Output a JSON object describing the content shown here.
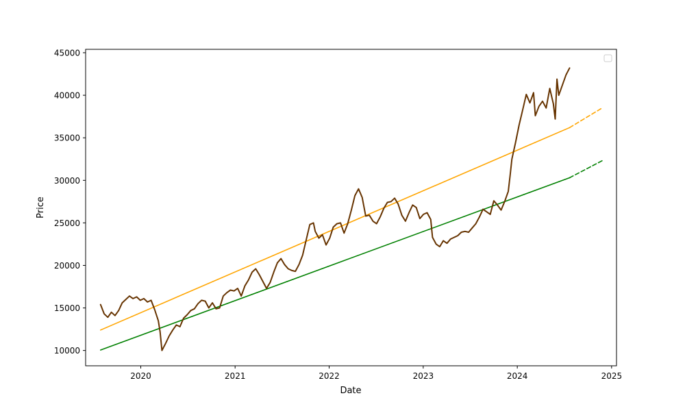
{
  "chart_data": {
    "type": "line",
    "title": "",
    "xlabel": "Date",
    "ylabel": "Price",
    "x_ticks": [
      "2020",
      "2021",
      "2022",
      "2023",
      "2024",
      "2025"
    ],
    "y_ticks": [
      "10000",
      "15000",
      "20000",
      "25000",
      "30000",
      "35000",
      "40000",
      "45000"
    ],
    "xlim": [
      "2019-06-01",
      "2025-01-20"
    ],
    "ylim": [
      8200,
      45400
    ],
    "grid": false,
    "legend": {
      "placement": "top-right",
      "entries": []
    },
    "colors": {
      "price": "#663300",
      "orange_line": "#ffa500",
      "green_line": "#008000"
    },
    "series": [
      {
        "key": "price",
        "style": "solid",
        "points": [
          [
            "2019-07-29",
            15400
          ],
          [
            "2019-08-12",
            14300
          ],
          [
            "2019-08-26",
            13900
          ],
          [
            "2019-09-09",
            14500
          ],
          [
            "2019-09-23",
            14100
          ],
          [
            "2019-10-07",
            14700
          ],
          [
            "2019-10-21",
            15600
          ],
          [
            "2019-11-04",
            16000
          ],
          [
            "2019-11-18",
            16400
          ],
          [
            "2019-12-02",
            16100
          ],
          [
            "2019-12-16",
            16300
          ],
          [
            "2019-12-30",
            15900
          ],
          [
            "2020-01-13",
            16100
          ],
          [
            "2020-01-27",
            15700
          ],
          [
            "2020-02-10",
            15900
          ],
          [
            "2020-02-24",
            14800
          ],
          [
            "2020-03-09",
            13500
          ],
          [
            "2020-03-16",
            12200
          ],
          [
            "2020-03-23",
            10000
          ],
          [
            "2020-04-06",
            10800
          ],
          [
            "2020-04-20",
            11700
          ],
          [
            "2020-05-04",
            12400
          ],
          [
            "2020-05-18",
            13000
          ],
          [
            "2020-06-01",
            12800
          ],
          [
            "2020-06-15",
            13800
          ],
          [
            "2020-06-29",
            14200
          ],
          [
            "2020-07-13",
            14700
          ],
          [
            "2020-07-27",
            14900
          ],
          [
            "2020-08-10",
            15500
          ],
          [
            "2020-08-24",
            15900
          ],
          [
            "2020-09-07",
            15800
          ],
          [
            "2020-09-21",
            15000
          ],
          [
            "2020-10-05",
            15600
          ],
          [
            "2020-10-19",
            14900
          ],
          [
            "2020-11-02",
            15000
          ],
          [
            "2020-11-16",
            16400
          ],
          [
            "2020-11-30",
            16800
          ],
          [
            "2020-12-14",
            17100
          ],
          [
            "2020-12-28",
            17000
          ],
          [
            "2021-01-11",
            17300
          ],
          [
            "2021-01-25",
            16400
          ],
          [
            "2021-02-08",
            17600
          ],
          [
            "2021-02-22",
            18300
          ],
          [
            "2021-03-08",
            19200
          ],
          [
            "2021-03-22",
            19600
          ],
          [
            "2021-04-05",
            18900
          ],
          [
            "2021-04-19",
            18100
          ],
          [
            "2021-05-03",
            17300
          ],
          [
            "2021-05-17",
            18000
          ],
          [
            "2021-05-31",
            19200
          ],
          [
            "2021-06-14",
            20300
          ],
          [
            "2021-06-28",
            20800
          ],
          [
            "2021-07-12",
            20100
          ],
          [
            "2021-07-26",
            19600
          ],
          [
            "2021-08-09",
            19400
          ],
          [
            "2021-08-23",
            19300
          ],
          [
            "2021-09-06",
            20100
          ],
          [
            "2021-09-20",
            21200
          ],
          [
            "2021-10-04",
            23000
          ],
          [
            "2021-10-18",
            24800
          ],
          [
            "2021-11-01",
            25000
          ],
          [
            "2021-11-08",
            24000
          ],
          [
            "2021-11-22",
            23200
          ],
          [
            "2021-12-06",
            23600
          ],
          [
            "2021-12-20",
            22400
          ],
          [
            "2022-01-03",
            23200
          ],
          [
            "2022-01-17",
            24500
          ],
          [
            "2022-01-31",
            24900
          ],
          [
            "2022-02-14",
            25000
          ],
          [
            "2022-02-28",
            23800
          ],
          [
            "2022-03-14",
            24900
          ],
          [
            "2022-03-28",
            26500
          ],
          [
            "2022-04-11",
            28200
          ],
          [
            "2022-04-25",
            29000
          ],
          [
            "2022-05-09",
            28000
          ],
          [
            "2022-05-23",
            25800
          ],
          [
            "2022-06-06",
            25900
          ],
          [
            "2022-06-20",
            25200
          ],
          [
            "2022-07-04",
            24900
          ],
          [
            "2022-07-18",
            25700
          ],
          [
            "2022-08-01",
            26700
          ],
          [
            "2022-08-15",
            27400
          ],
          [
            "2022-08-29",
            27500
          ],
          [
            "2022-09-12",
            27900
          ],
          [
            "2022-09-26",
            27200
          ],
          [
            "2022-10-10",
            25900
          ],
          [
            "2022-10-24",
            25200
          ],
          [
            "2022-11-07",
            26200
          ],
          [
            "2022-11-21",
            27100
          ],
          [
            "2022-12-05",
            26800
          ],
          [
            "2022-12-19",
            25500
          ],
          [
            "2023-01-02",
            26000
          ],
          [
            "2023-01-16",
            26200
          ],
          [
            "2023-01-30",
            25400
          ],
          [
            "2023-02-06",
            23300
          ],
          [
            "2023-02-20",
            22500
          ],
          [
            "2023-03-06",
            22200
          ],
          [
            "2023-03-20",
            22900
          ],
          [
            "2023-04-03",
            22600
          ],
          [
            "2023-04-17",
            23100
          ],
          [
            "2023-05-01",
            23300
          ],
          [
            "2023-05-15",
            23500
          ],
          [
            "2023-05-29",
            23900
          ],
          [
            "2023-06-12",
            24000
          ],
          [
            "2023-06-26",
            23900
          ],
          [
            "2023-07-10",
            24400
          ],
          [
            "2023-07-24",
            24900
          ],
          [
            "2023-08-07",
            25700
          ],
          [
            "2023-08-21",
            26600
          ],
          [
            "2023-09-04",
            26300
          ],
          [
            "2023-09-18",
            26000
          ],
          [
            "2023-10-02",
            27600
          ],
          [
            "2023-10-16",
            27100
          ],
          [
            "2023-10-30",
            26500
          ],
          [
            "2023-11-13",
            27500
          ],
          [
            "2023-11-27",
            28700
          ],
          [
            "2023-12-04",
            30500
          ],
          [
            "2023-12-11",
            32500
          ],
          [
            "2023-12-25",
            34400
          ],
          [
            "2024-01-08",
            36500
          ],
          [
            "2024-01-22",
            38300
          ],
          [
            "2024-02-05",
            40100
          ],
          [
            "2024-02-19",
            39100
          ],
          [
            "2024-03-04",
            40300
          ],
          [
            "2024-03-11",
            37600
          ],
          [
            "2024-03-25",
            38700
          ],
          [
            "2024-04-08",
            39300
          ],
          [
            "2024-04-22",
            38500
          ],
          [
            "2024-05-06",
            40800
          ],
          [
            "2024-05-20",
            39000
          ],
          [
            "2024-05-27",
            37200
          ],
          [
            "2024-06-03",
            41900
          ],
          [
            "2024-06-10",
            40000
          ],
          [
            "2024-06-24",
            41200
          ],
          [
            "2024-07-08",
            42400
          ],
          [
            "2024-07-22",
            43200
          ]
        ]
      },
      {
        "key": "orange_line",
        "style": "solid",
        "points": [
          [
            "2019-07-29",
            12400
          ],
          [
            "2024-07-22",
            36200
          ]
        ]
      },
      {
        "key": "orange_line",
        "style": "dashed",
        "points": [
          [
            "2024-07-22",
            36200
          ],
          [
            "2024-11-25",
            38500
          ]
        ]
      },
      {
        "key": "green_line",
        "style": "solid",
        "points": [
          [
            "2019-07-29",
            10050
          ],
          [
            "2024-07-22",
            30300
          ]
        ]
      },
      {
        "key": "green_line",
        "style": "dashed",
        "points": [
          [
            "2024-07-22",
            30300
          ],
          [
            "2024-11-25",
            32300
          ]
        ]
      }
    ]
  }
}
